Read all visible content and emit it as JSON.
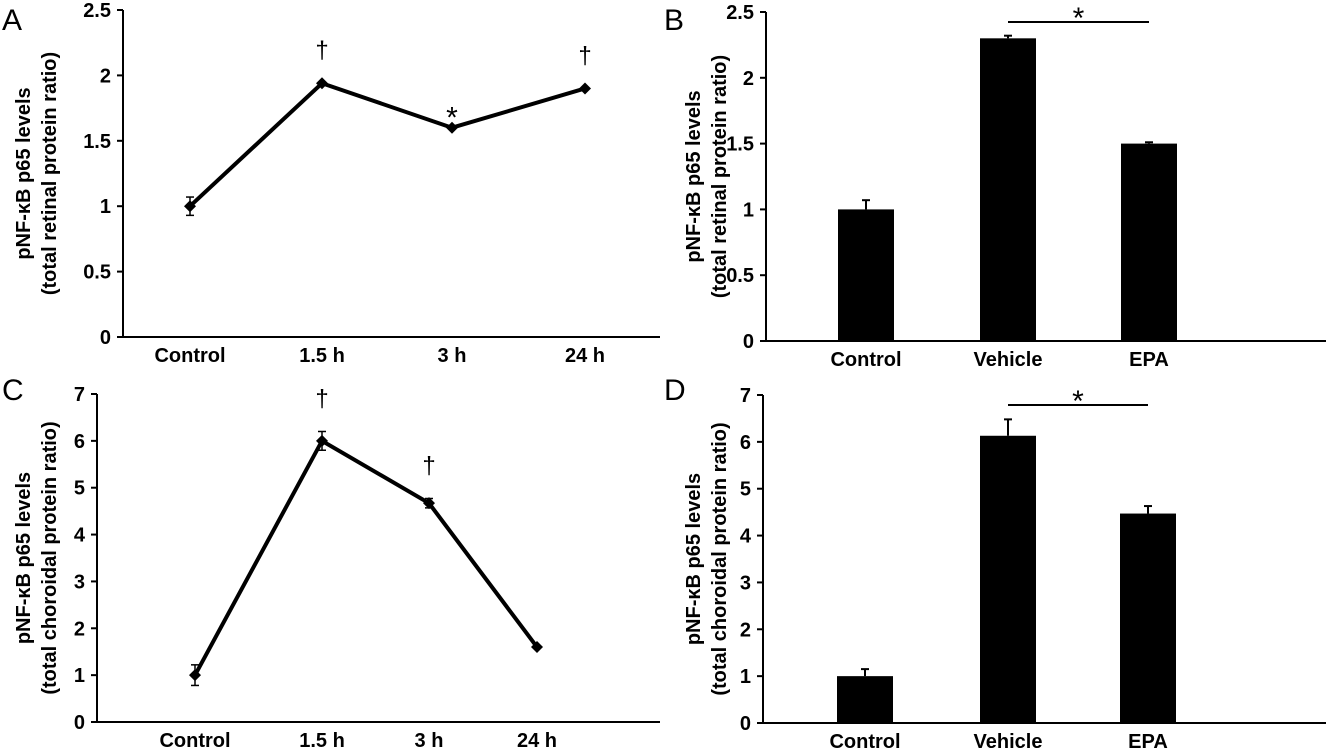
{
  "figure": {
    "panels": [
      "A",
      "B",
      "C",
      "D"
    ]
  },
  "chart_data": [
    {
      "panel": "A",
      "type": "line",
      "title": "",
      "xlabel": "",
      "ylabel_line1": "pNF-κB p65 levels",
      "ylabel_line2": "(total retinal protein ratio)",
      "categories": [
        "Control",
        "1.5 h",
        "3 h",
        "24 h"
      ],
      "series": [
        {
          "name": "pNF-κB p65",
          "values": [
            1.0,
            1.94,
            1.6,
            1.9
          ],
          "errors": [
            0.07,
            0.0,
            0.0,
            0.0
          ]
        }
      ],
      "annotations": [
        "",
        "†",
        "*",
        "†"
      ],
      "ylim": [
        0,
        2.5
      ],
      "yticks": [
        0,
        0.5,
        1,
        1.5,
        2,
        2.5
      ],
      "ytick_labels": [
        "0",
        "0.5",
        "1",
        "1.5",
        "2",
        "2.5"
      ],
      "grid": false,
      "marker": "diamond",
      "color": "#000000"
    },
    {
      "panel": "B",
      "type": "bar",
      "title": "",
      "xlabel": "",
      "ylabel_line1": "pNF-κB p65 levels",
      "ylabel_line2": "(total retinal protein ratio)",
      "categories": [
        "Control",
        "Vehicle",
        "EPA"
      ],
      "values": [
        1.0,
        2.3,
        1.5
      ],
      "errors": [
        0.07,
        0.02,
        0.01
      ],
      "significance": {
        "from": "Vehicle",
        "to": "EPA",
        "label": "*"
      },
      "ylim": [
        0,
        2.5
      ],
      "yticks": [
        0,
        0.5,
        1,
        1.5,
        2,
        2.5
      ],
      "ytick_labels": [
        "0",
        "0.5",
        "1",
        "1.5",
        "2",
        "2.5"
      ],
      "grid": false,
      "color": "#000000"
    },
    {
      "panel": "C",
      "type": "line",
      "title": "",
      "xlabel": "",
      "ylabel_line1": "pNF-κB p65 levels",
      "ylabel_line2": "(total choroidal protein ratio)",
      "categories": [
        "Control",
        "1.5 h",
        "3 h",
        "24 h"
      ],
      "series": [
        {
          "name": "pNF-κB p65",
          "values": [
            1.0,
            6.0,
            4.67,
            1.6
          ],
          "errors": [
            0.22,
            0.2,
            0.1,
            0.0
          ]
        }
      ],
      "annotations": [
        "",
        "†",
        "†",
        ""
      ],
      "ylim": [
        0,
        7
      ],
      "yticks": [
        0,
        1,
        2,
        3,
        4,
        5,
        6,
        7
      ],
      "ytick_labels": [
        "0",
        "1",
        "2",
        "3",
        "4",
        "5",
        "6",
        "7"
      ],
      "grid": false,
      "marker": "diamond",
      "color": "#000000"
    },
    {
      "panel": "D",
      "type": "bar",
      "title": "",
      "xlabel": "",
      "ylabel_line1": "pNF-κB p65 levels",
      "ylabel_line2": "(total choroidal protein ratio)",
      "categories": [
        "Control",
        "Vehicle",
        "EPA"
      ],
      "values": [
        1.0,
        6.13,
        4.47
      ],
      "errors": [
        0.15,
        0.35,
        0.16
      ],
      "significance": {
        "from": "Vehicle",
        "to": "EPA",
        "label": "*"
      },
      "ylim": [
        0,
        7
      ],
      "yticks": [
        0,
        1,
        2,
        3,
        4,
        5,
        6,
        7
      ],
      "ytick_labels": [
        "0",
        "1",
        "2",
        "3",
        "4",
        "5",
        "6",
        "7"
      ],
      "grid": false,
      "color": "#000000"
    }
  ]
}
